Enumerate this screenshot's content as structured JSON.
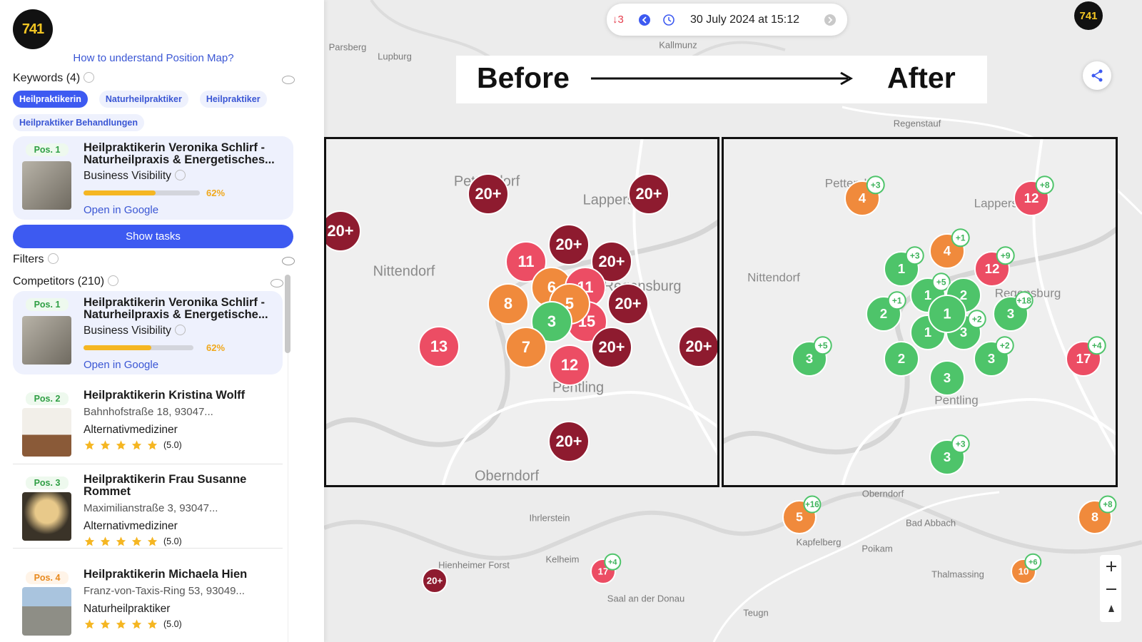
{
  "app": {
    "logo": "741"
  },
  "sidebar": {
    "help_link": "How to understand Position Map?",
    "keywords": {
      "title": "Keywords (4)",
      "chips": [
        "Heilpraktikerin",
        "Naturheilpraktiker",
        "Heilpraktiker",
        "Heilpraktiker Behandlungen"
      ],
      "active": 0
    },
    "business": {
      "position": "Pos. 1",
      "name": "Heilpraktikerin Veronika Schlirf - Naturheilpraxis & Energetisches...",
      "metric": "Business Visibility",
      "visibility": {
        "value": 62,
        "label": "62%"
      },
      "link": "Open in Google"
    },
    "show_tasks": "Show tasks",
    "filters": "Filters",
    "competitors": {
      "title": "Competitors (210)",
      "top": {
        "position": "Pos. 1",
        "name": "Heilpraktikerin Veronika Schlirf - Naturheilpraxis & Energetische...",
        "metric": "Business Visibility",
        "visibility": {
          "value": 62,
          "label": "62%"
        },
        "link": "Open in Google"
      },
      "items": [
        {
          "position": "Pos. 2",
          "name": "Heilpraktikerin Kristina Wolff",
          "address": "Bahnhofstraße 18, 93047...",
          "category": "Alternativmediziner",
          "rating_label": "(5.0)"
        },
        {
          "position": "Pos. 3",
          "name": "Heilpraktikerin Frau Susanne Rommet",
          "address": "Maximilianstraße 3, 93047...",
          "category": "Alternativmediziner",
          "rating_label": "(5.0)"
        },
        {
          "position": "Pos. 4",
          "name": "Heilpraktikerin Michaela Hien",
          "address": "Franz-von-Taxis-Ring 53, 93049...",
          "category": "Naturheilpraktiker",
          "rating_label": "(5.0)"
        }
      ]
    }
  },
  "map": {
    "toolbar": {
      "rank_change": "↓3",
      "date": "30 July 2024 at 15:12"
    },
    "banner": {
      "before": "Before",
      "after": "After"
    },
    "places": [
      "Parsberg",
      "Lupburg",
      "Kallmunz",
      "Regenstauf",
      "Oberndorf",
      "Ihrlerstein",
      "Bad Abbach",
      "Kapfelberg",
      "Poikam",
      "Kelheim",
      "Hienheimer Forst",
      "Saal an der Donau",
      "Thalmassing",
      "Teugn"
    ],
    "panel_places": {
      "before": [
        "Pettendorf",
        "Lappersdorf",
        "Nittendorf",
        "Regensburg",
        "Pentling",
        "Oberndorf"
      ],
      "after": [
        "Pettendorf",
        "Lappersdorf",
        "Nittendorf",
        "Regensburg",
        "Pentling"
      ]
    },
    "before": [
      {
        "label": "20+",
        "color": "#8e1b2f"
      },
      {
        "label": "20+",
        "color": "#8e1b2f"
      },
      {
        "label": "20+",
        "color": "#8e1b2f"
      },
      {
        "label": "20+",
        "color": "#8e1b2f"
      },
      {
        "label": "11",
        "color": "#ec4d64"
      },
      {
        "label": "20+",
        "color": "#8e1b2f"
      },
      {
        "label": "6",
        "color": "#f08a3c"
      },
      {
        "label": "11",
        "color": "#ec4d64"
      },
      {
        "label": "8",
        "color": "#f08a3c"
      },
      {
        "label": "15",
        "color": "#ec4d64"
      },
      {
        "label": "5",
        "color": "#f08a3c"
      },
      {
        "label": "20+",
        "color": "#8e1b2f"
      },
      {
        "label": "3",
        "color": "#4ec46a"
      },
      {
        "label": "13",
        "color": "#ec4d64"
      },
      {
        "label": "7",
        "color": "#f08a3c"
      },
      {
        "label": "20+",
        "color": "#8e1b2f"
      },
      {
        "label": "20+",
        "color": "#8e1b2f"
      },
      {
        "label": "12",
        "color": "#ec4d64"
      },
      {
        "label": "20+",
        "color": "#8e1b2f"
      }
    ],
    "after": [
      {
        "label": "4",
        "color": "#f08a3c",
        "badge": "+3"
      },
      {
        "label": "12",
        "color": "#ec4d64",
        "badge": "+8"
      },
      {
        "label": "4",
        "color": "#f08a3c",
        "badge": "+1"
      },
      {
        "label": "12",
        "color": "#ec4d64",
        "badge": "+9"
      },
      {
        "label": "1",
        "color": "#4ec46a",
        "badge": "+3"
      },
      {
        "label": "1",
        "color": "#4ec46a",
        "badge": "+5"
      },
      {
        "label": "2",
        "color": "#4ec46a"
      },
      {
        "label": "2",
        "color": "#4ec46a",
        "badge": "+1"
      },
      {
        "label": "3",
        "color": "#4ec46a",
        "badge": "+18"
      },
      {
        "label": "1",
        "color": "#4ec46a"
      },
      {
        "label": "3",
        "color": "#4ec46a",
        "badge": "+2"
      },
      {
        "label": "1",
        "color": "#4ec46a"
      },
      {
        "label": "3",
        "color": "#4ec46a",
        "badge": "+5"
      },
      {
        "label": "2",
        "color": "#4ec46a"
      },
      {
        "label": "3",
        "color": "#4ec46a",
        "badge": "+2"
      },
      {
        "label": "17",
        "color": "#ec4d64",
        "badge": "+4"
      },
      {
        "label": "3",
        "color": "#4ec46a"
      },
      {
        "label": "3",
        "color": "#4ec46a",
        "badge": "+3"
      }
    ],
    "outside": [
      {
        "label": "5",
        "color": "#f08a3c",
        "badge": "+16"
      },
      {
        "label": "8",
        "color": "#f08a3c",
        "badge": "+8"
      },
      {
        "label": "20+",
        "color": "#8e1b2f"
      },
      {
        "label": "17",
        "color": "#ec4d64",
        "badge": "+4"
      },
      {
        "label": "10",
        "color": "#f08a3c",
        "badge": "+6"
      }
    ]
  }
}
